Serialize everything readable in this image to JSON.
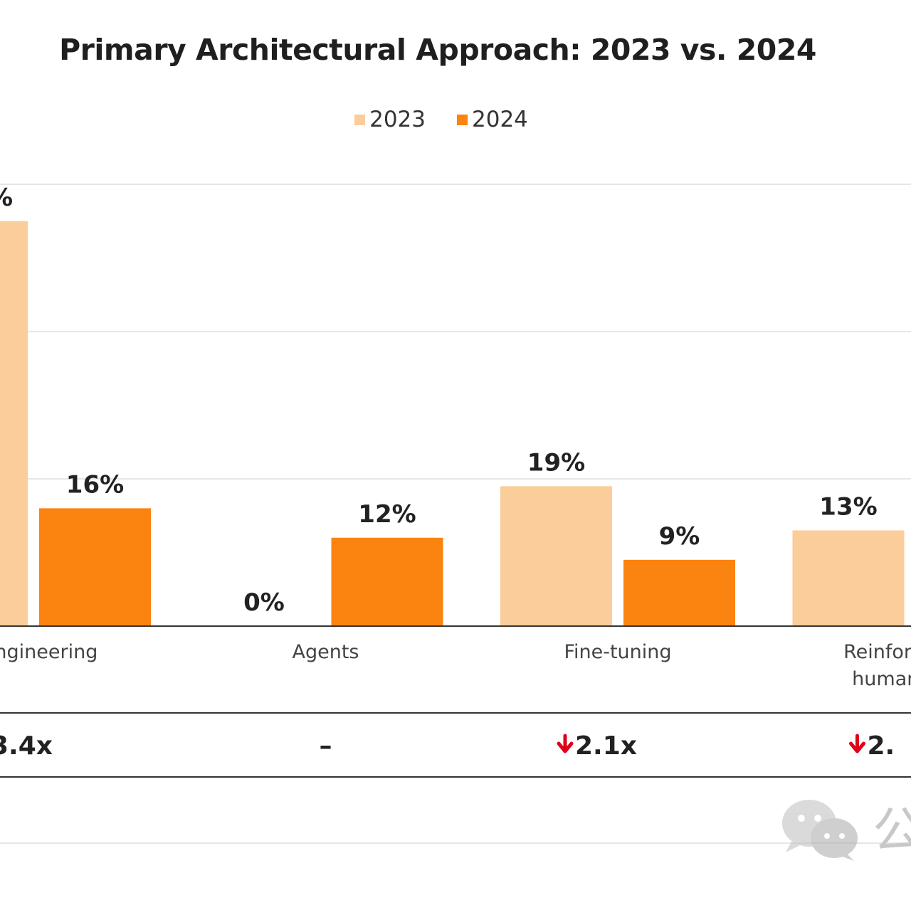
{
  "colors": {
    "series_2023": "#fbcd9b",
    "series_2024": "#fb830f",
    "down_arrow": "#e0001a",
    "grid": "#e6e6e6",
    "axis": "#333333"
  },
  "chart_data": {
    "type": "bar",
    "title": "Primary Architectural Approach: 2023 vs. 2024",
    "legend": [
      "2023",
      "2024"
    ],
    "legend_position": "top-center",
    "categories": [
      "t engineering",
      "Agents",
      "Fine-tuning",
      "Reinforcemen human feed"
    ],
    "category_lines": [
      [
        "t engineering"
      ],
      [
        "Agents"
      ],
      [
        "Fine-tuning"
      ],
      [
        "Reinforcemen",
        "human feed"
      ]
    ],
    "series": [
      {
        "name": "2023",
        "values": [
          55,
          0,
          19,
          13
        ],
        "labels": [
          "",
          "0%",
          "19%",
          "13%"
        ],
        "label_partial": [
          "%",
          null,
          null,
          null
        ]
      },
      {
        "name": "2024",
        "values": [
          16,
          12,
          9,
          null
        ],
        "labels": [
          "16%",
          "12%",
          "9%",
          ""
        ]
      }
    ],
    "change_row": [
      {
        "arrow": "down",
        "text": "3.4x"
      },
      {
        "arrow": "none",
        "text": "–"
      },
      {
        "arrow": "down",
        "text": "2.1x"
      },
      {
        "arrow": "down",
        "text": "2."
      }
    ],
    "ylim": [
      0,
      60
    ],
    "gridlines": true,
    "xlabel": "",
    "ylabel": ""
  },
  "watermark": {
    "icon": "wechat-icon",
    "text": "公"
  }
}
